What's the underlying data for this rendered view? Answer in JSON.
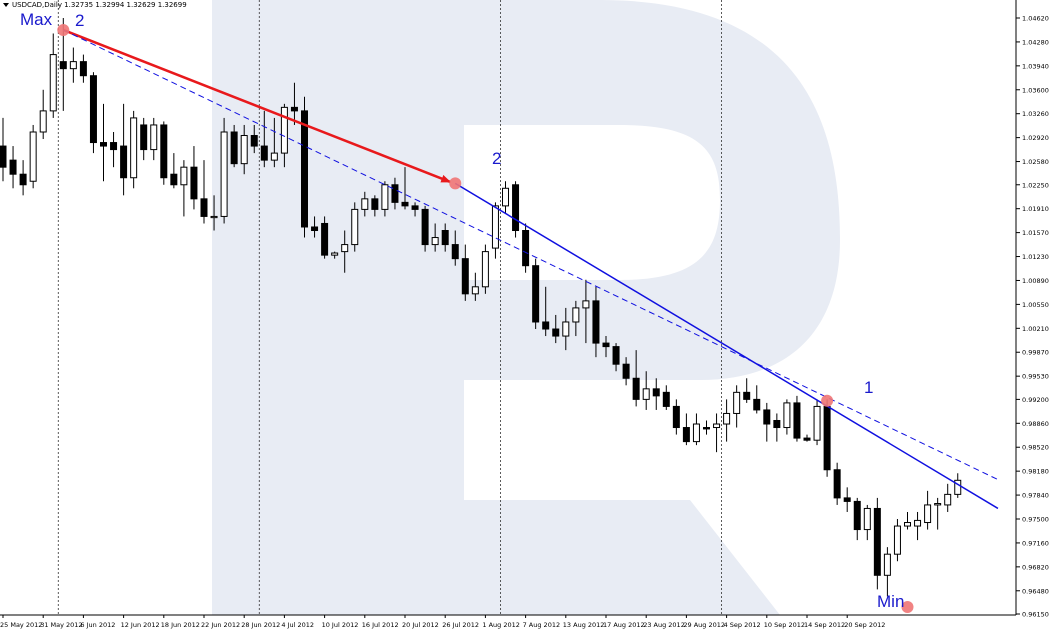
{
  "header": {
    "symbol_line": "USDCAD,Daily  1.32735 1.32994 1.32629 1.32699"
  },
  "colors": {
    "bull_fill": "#ffffff",
    "bear_fill": "#000000",
    "red_trend": "#e8191c",
    "blue_trend": "#1010e0",
    "marker": "#f07575",
    "label": "#1a1acc",
    "watermark": "#e8ecf4"
  },
  "annotations": {
    "max_label": "Max",
    "min_label": "Min",
    "point_2_top": "2",
    "point_2_mid": "2",
    "point_1": "1"
  },
  "chart_data": {
    "type": "candlestick",
    "title": "",
    "xlabel": "",
    "ylabel": "",
    "ylim": [
      0.9615,
      1.0475
    ],
    "y_ticks": [
      "1.04620",
      "1.04280",
      "1.03940",
      "1.03600",
      "1.03260",
      "1.02920",
      "1.02580",
      "1.02250",
      "1.01910",
      "1.01570",
      "1.01230",
      "1.00890",
      "1.00550",
      "1.00210",
      "0.99870",
      "0.99530",
      "0.99200",
      "0.98860",
      "0.98520",
      "0.98180",
      "0.97840",
      "0.97500",
      "0.97160",
      "0.96820",
      "0.96480",
      "0.96150"
    ],
    "x_tick_labels": [
      {
        "i": 0,
        "label": "25 May 2012"
      },
      {
        "i": 4,
        "label": "31 May 2012"
      },
      {
        "i": 8,
        "label": "6 Jun 2012"
      },
      {
        "i": 12,
        "label": "12 Jun 2012"
      },
      {
        "i": 16,
        "label": "18 Jun 2012"
      },
      {
        "i": 20,
        "label": "22 Jun 2012"
      },
      {
        "i": 24,
        "label": "28 Jun 2012"
      },
      {
        "i": 28,
        "label": "4 Jul 2012"
      },
      {
        "i": 32,
        "label": "10 Jul 2012"
      },
      {
        "i": 36,
        "label": "16 Jul 2012"
      },
      {
        "i": 40,
        "label": "20 Jul 2012"
      },
      {
        "i": 44,
        "label": "26 Jul 2012"
      },
      {
        "i": 48,
        "label": "1 Aug 2012"
      },
      {
        "i": 52,
        "label": "7 Aug 2012"
      },
      {
        "i": 56,
        "label": "13 Aug 2012"
      },
      {
        "i": 60,
        "label": "17 Aug 2012"
      },
      {
        "i": 64,
        "label": "23 Aug 2012"
      },
      {
        "i": 68,
        "label": "29 Aug 2012"
      },
      {
        "i": 72,
        "label": "4 Sep 2012"
      },
      {
        "i": 76,
        "label": "10 Sep 2012"
      },
      {
        "i": 80,
        "label": "14 Sep 2012"
      },
      {
        "i": 84,
        "label": "20 Sep 2012"
      }
    ],
    "separators": [
      5,
      25,
      49,
      71
    ],
    "candles": [
      {
        "o": 1.028,
        "h": 1.032,
        "l": 1.023,
        "c": 1.025
      },
      {
        "o": 1.026,
        "h": 1.028,
        "l": 1.022,
        "c": 1.024
      },
      {
        "o": 1.024,
        "h": 1.026,
        "l": 1.021,
        "c": 1.0225
      },
      {
        "o": 1.023,
        "h": 1.031,
        "l": 1.022,
        "c": 1.03
      },
      {
        "o": 1.03,
        "h": 1.036,
        "l": 1.029,
        "c": 1.033
      },
      {
        "o": 1.033,
        "h": 1.044,
        "l": 1.032,
        "c": 1.041
      },
      {
        "o": 1.04,
        "h": 1.0462,
        "l": 1.033,
        "c": 1.039
      },
      {
        "o": 1.039,
        "h": 1.042,
        "l": 1.037,
        "c": 1.04
      },
      {
        "o": 1.04,
        "h": 1.041,
        "l": 1.037,
        "c": 1.038
      },
      {
        "o": 1.038,
        "h": 1.0385,
        "l": 1.027,
        "c": 1.0285
      },
      {
        "o": 1.0285,
        "h": 1.034,
        "l": 1.023,
        "c": 1.028
      },
      {
        "o": 1.0285,
        "h": 1.03,
        "l": 1.025,
        "c": 1.0275
      },
      {
        "o": 1.028,
        "h": 1.034,
        "l": 1.021,
        "c": 1.0235
      },
      {
        "o": 1.0235,
        "h": 1.033,
        "l": 1.022,
        "c": 1.032
      },
      {
        "o": 1.031,
        "h": 1.032,
        "l": 1.026,
        "c": 1.0275
      },
      {
        "o": 1.0275,
        "h": 1.032,
        "l": 1.026,
        "c": 1.031
      },
      {
        "o": 1.031,
        "h": 1.0315,
        "l": 1.0225,
        "c": 1.0235
      },
      {
        "o": 1.024,
        "h": 1.027,
        "l": 1.022,
        "c": 1.0225
      },
      {
        "o": 1.0225,
        "h": 1.026,
        "l": 1.018,
        "c": 1.025
      },
      {
        "o": 1.025,
        "h": 1.028,
        "l": 1.019,
        "c": 1.0205
      },
      {
        "o": 1.0205,
        "h": 1.026,
        "l": 1.017,
        "c": 1.018
      },
      {
        "o": 1.018,
        "h": 1.021,
        "l": 1.016,
        "c": 1.018
      },
      {
        "o": 1.018,
        "h": 1.032,
        "l": 1.017,
        "c": 1.03
      },
      {
        "o": 1.03,
        "h": 1.031,
        "l": 1.025,
        "c": 1.0255
      },
      {
        "o": 1.0255,
        "h": 1.031,
        "l": 1.024,
        "c": 1.0295
      },
      {
        "o": 1.0295,
        "h": 1.031,
        "l": 1.027,
        "c": 1.028
      },
      {
        "o": 1.028,
        "h": 1.033,
        "l": 1.025,
        "c": 1.026
      },
      {
        "o": 1.026,
        "h": 1.032,
        "l": 1.025,
        "c": 1.027
      },
      {
        "o": 1.027,
        "h": 1.034,
        "l": 1.025,
        "c": 1.0335
      },
      {
        "o": 1.0335,
        "h": 1.037,
        "l": 1.031,
        "c": 1.033
      },
      {
        "o": 1.033,
        "h": 1.035,
        "l": 1.015,
        "c": 1.0165
      },
      {
        "o": 1.0165,
        "h": 1.018,
        "l": 1.015,
        "c": 1.016
      },
      {
        "o": 1.017,
        "h": 1.018,
        "l": 1.012,
        "c": 1.0125
      },
      {
        "o": 1.0125,
        "h": 1.013,
        "l": 1.012,
        "c": 1.0128
      },
      {
        "o": 1.013,
        "h": 1.016,
        "l": 1.01,
        "c": 1.014
      },
      {
        "o": 1.014,
        "h": 1.02,
        "l": 1.013,
        "c": 1.019
      },
      {
        "o": 1.019,
        "h": 1.0215,
        "l": 1.018,
        "c": 1.0205
      },
      {
        "o": 1.0205,
        "h": 1.021,
        "l": 1.018,
        "c": 1.019
      },
      {
        "o": 1.019,
        "h": 1.023,
        "l": 1.018,
        "c": 1.0225
      },
      {
        "o": 1.0225,
        "h": 1.0235,
        "l": 1.019,
        "c": 1.02
      },
      {
        "o": 1.02,
        "h": 1.025,
        "l": 1.019,
        "c": 1.0195
      },
      {
        "o": 1.0195,
        "h": 1.02,
        "l": 1.018,
        "c": 1.019
      },
      {
        "o": 1.019,
        "h": 1.0195,
        "l": 1.013,
        "c": 1.014
      },
      {
        "o": 1.014,
        "h": 1.017,
        "l": 1.013,
        "c": 1.015
      },
      {
        "o": 1.016,
        "h": 1.017,
        "l": 1.013,
        "c": 1.014
      },
      {
        "o": 1.014,
        "h": 1.016,
        "l": 1.011,
        "c": 1.012
      },
      {
        "o": 1.012,
        "h": 1.014,
        "l": 1.006,
        "c": 1.007
      },
      {
        "o": 1.007,
        "h": 1.01,
        "l": 1.006,
        "c": 1.008
      },
      {
        "o": 1.008,
        "h": 1.014,
        "l": 1.007,
        "c": 1.013
      },
      {
        "o": 1.0135,
        "h": 1.02,
        "l": 1.012,
        "c": 1.0195
      },
      {
        "o": 1.0195,
        "h": 1.023,
        "l": 1.0185,
        "c": 1.022
      },
      {
        "o": 1.0225,
        "h": 1.023,
        "l": 1.015,
        "c": 1.016
      },
      {
        "o": 1.016,
        "h": 1.017,
        "l": 1.01,
        "c": 1.011
      },
      {
        "o": 1.011,
        "h": 1.012,
        "l": 1.002,
        "c": 1.003
      },
      {
        "o": 1.003,
        "h": 1.008,
        "l": 1.001,
        "c": 1.002
      },
      {
        "o": 1.002,
        "h": 1.004,
        "l": 1.0,
        "c": 1.001
      },
      {
        "o": 1.001,
        "h": 1.005,
        "l": 0.999,
        "c": 1.003
      },
      {
        "o": 1.003,
        "h": 1.006,
        "l": 1.001,
        "c": 1.005
      },
      {
        "o": 1.005,
        "h": 1.009,
        "l": 1.0,
        "c": 1.006
      },
      {
        "o": 1.006,
        "h": 1.008,
        "l": 0.998,
        "c": 1.0
      },
      {
        "o": 1.0,
        "h": 1.001,
        "l": 0.998,
        "c": 0.9995
      },
      {
        "o": 0.9995,
        "h": 1.0,
        "l": 0.996,
        "c": 0.997
      },
      {
        "o": 0.997,
        "h": 0.998,
        "l": 0.994,
        "c": 0.995
      },
      {
        "o": 0.995,
        "h": 0.999,
        "l": 0.991,
        "c": 0.992
      },
      {
        "o": 0.992,
        "h": 0.996,
        "l": 0.9905,
        "c": 0.9935
      },
      {
        "o": 0.9935,
        "h": 0.995,
        "l": 0.9905,
        "c": 0.9925
      },
      {
        "o": 0.993,
        "h": 0.994,
        "l": 0.9905,
        "c": 0.991
      },
      {
        "o": 0.991,
        "h": 0.992,
        "l": 0.987,
        "c": 0.988
      },
      {
        "o": 0.988,
        "h": 0.99,
        "l": 0.9855,
        "c": 0.986
      },
      {
        "o": 0.986,
        "h": 0.99,
        "l": 0.9855,
        "c": 0.9885
      },
      {
        "o": 0.988,
        "h": 0.989,
        "l": 0.987,
        "c": 0.9878
      },
      {
        "o": 0.988,
        "h": 0.99,
        "l": 0.9845,
        "c": 0.9885
      },
      {
        "o": 0.9885,
        "h": 0.992,
        "l": 0.986,
        "c": 0.99
      },
      {
        "o": 0.99,
        "h": 0.994,
        "l": 0.988,
        "c": 0.993
      },
      {
        "o": 0.993,
        "h": 0.995,
        "l": 0.9915,
        "c": 0.992
      },
      {
        "o": 0.992,
        "h": 0.994,
        "l": 0.99,
        "c": 0.9905
      },
      {
        "o": 0.9905,
        "h": 0.9915,
        "l": 0.986,
        "c": 0.9885
      },
      {
        "o": 0.989,
        "h": 0.99,
        "l": 0.986,
        "c": 0.988
      },
      {
        "o": 0.988,
        "h": 0.992,
        "l": 0.987,
        "c": 0.9915
      },
      {
        "o": 0.9915,
        "h": 0.9925,
        "l": 0.986,
        "c": 0.9865
      },
      {
        "o": 0.9865,
        "h": 0.987,
        "l": 0.986,
        "c": 0.9862
      },
      {
        "o": 0.9862,
        "h": 0.992,
        "l": 0.9855,
        "c": 0.991
      },
      {
        "o": 0.991,
        "h": 0.992,
        "l": 0.981,
        "c": 0.982
      },
      {
        "o": 0.982,
        "h": 0.983,
        "l": 0.977,
        "c": 0.978
      },
      {
        "o": 0.978,
        "h": 0.9795,
        "l": 0.976,
        "c": 0.9775
      },
      {
        "o": 0.9775,
        "h": 0.978,
        "l": 0.972,
        "c": 0.9735
      },
      {
        "o": 0.9735,
        "h": 0.977,
        "l": 0.972,
        "c": 0.9765
      },
      {
        "o": 0.9765,
        "h": 0.978,
        "l": 0.965,
        "c": 0.967
      },
      {
        "o": 0.967,
        "h": 0.971,
        "l": 0.964,
        "c": 0.97
      },
      {
        "o": 0.97,
        "h": 0.975,
        "l": 0.969,
        "c": 0.974
      },
      {
        "o": 0.974,
        "h": 0.976,
        "l": 0.9735,
        "c": 0.9745
      },
      {
        "o": 0.974,
        "h": 0.976,
        "l": 0.972,
        "c": 0.9748
      },
      {
        "o": 0.9745,
        "h": 0.979,
        "l": 0.9735,
        "c": 0.977
      },
      {
        "o": 0.977,
        "h": 0.978,
        "l": 0.9735,
        "c": 0.9772
      },
      {
        "o": 0.977,
        "h": 0.98,
        "l": 0.976,
        "c": 0.9785
      },
      {
        "o": 0.9785,
        "h": 0.9815,
        "l": 0.978,
        "c": 0.9805
      }
    ],
    "markers": [
      {
        "name": "max",
        "i": 6,
        "y": 1.0445
      },
      {
        "name": "point-2",
        "i": 45,
        "y": 1.0227
      },
      {
        "name": "point-1",
        "i": 82,
        "y": 0.9918
      },
      {
        "name": "min",
        "i": 90,
        "y": 0.9625
      }
    ],
    "trendlines": [
      {
        "name": "red-arrow-trend",
        "from": {
          "i": 6,
          "y": 1.0445
        },
        "to": {
          "i": 44.5,
          "y": 1.0229
        },
        "style": "solid",
        "color": "red",
        "arrow": true
      },
      {
        "name": "blue-dashed-trend",
        "from": {
          "i": 6,
          "y": 1.0445
        },
        "to": {
          "i": 99,
          "y": 0.9806
        },
        "style": "dashed",
        "color": "blue"
      },
      {
        "name": "blue-solid-trend",
        "from": {
          "i": 45,
          "y": 1.0227
        },
        "to": {
          "i": 99,
          "y": 0.9765
        },
        "style": "solid",
        "color": "blue"
      }
    ]
  }
}
